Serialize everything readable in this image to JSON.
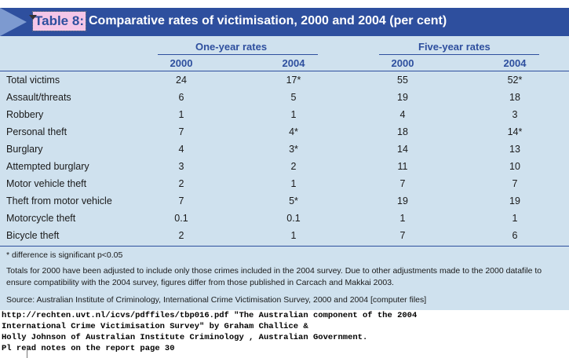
{
  "header": {
    "table_label": "Table 8:",
    "title": "Comparative rates of victimisation, 2000 and 2004 (per cent)"
  },
  "groups": {
    "one_year": "One-year rates",
    "five_year": "Five-year rates"
  },
  "years": [
    "2000",
    "2004",
    "2000",
    "2004"
  ],
  "rows": [
    {
      "label": "Total victims",
      "v": [
        "24",
        "17*",
        "55",
        "52*"
      ]
    },
    {
      "label": "Assault/threats",
      "v": [
        "6",
        "5",
        "19",
        "18"
      ]
    },
    {
      "label": "Robbery",
      "v": [
        "1",
        "1",
        "4",
        "3"
      ]
    },
    {
      "label": "Personal theft",
      "v": [
        "7",
        "4*",
        "18",
        "14*"
      ]
    },
    {
      "label": "Burglary",
      "v": [
        "4",
        "3*",
        "14",
        "13"
      ]
    },
    {
      "label": "Attempted burglary",
      "v": [
        "3",
        "2",
        "11",
        "10"
      ]
    },
    {
      "label": "Motor vehicle theft",
      "v": [
        "2",
        "1",
        "7",
        "7"
      ]
    },
    {
      "label": "Theft from motor vehicle",
      "v": [
        "7",
        "5*",
        "19",
        "19"
      ]
    },
    {
      "label": "Motorcycle theft",
      "v": [
        "0.1",
        "0.1",
        "1",
        "1"
      ]
    },
    {
      "label": "Bicycle theft",
      "v": [
        "2",
        "1",
        "7",
        "6"
      ]
    }
  ],
  "notes": {
    "significance": "* difference is significant p<0.05",
    "adjustment": "Totals for 2000 have been adjusted to include only those crimes included in the 2004 survey. Due to other adjustments made to the 2000 datafile to ensure compatibility with the 2004 survey, figures differ from those published in Carcach and Makkai 2003.",
    "source": "Source: Australian Institute of Criminology, International Crime Victimisation Survey, 2000 and 2004 [computer files]"
  },
  "reference": [
    "http://rechten.uvt.nl/icvs/pdffiles/tbp016.pdf  \"The Australian component of the 2004",
    "International Crime Victimisation Survey\"  by Graham Challice &",
    "Holly Johnson of Australian Institute Criminology , Australian Government.",
    "Pl read notes on the report page 30"
  ]
}
